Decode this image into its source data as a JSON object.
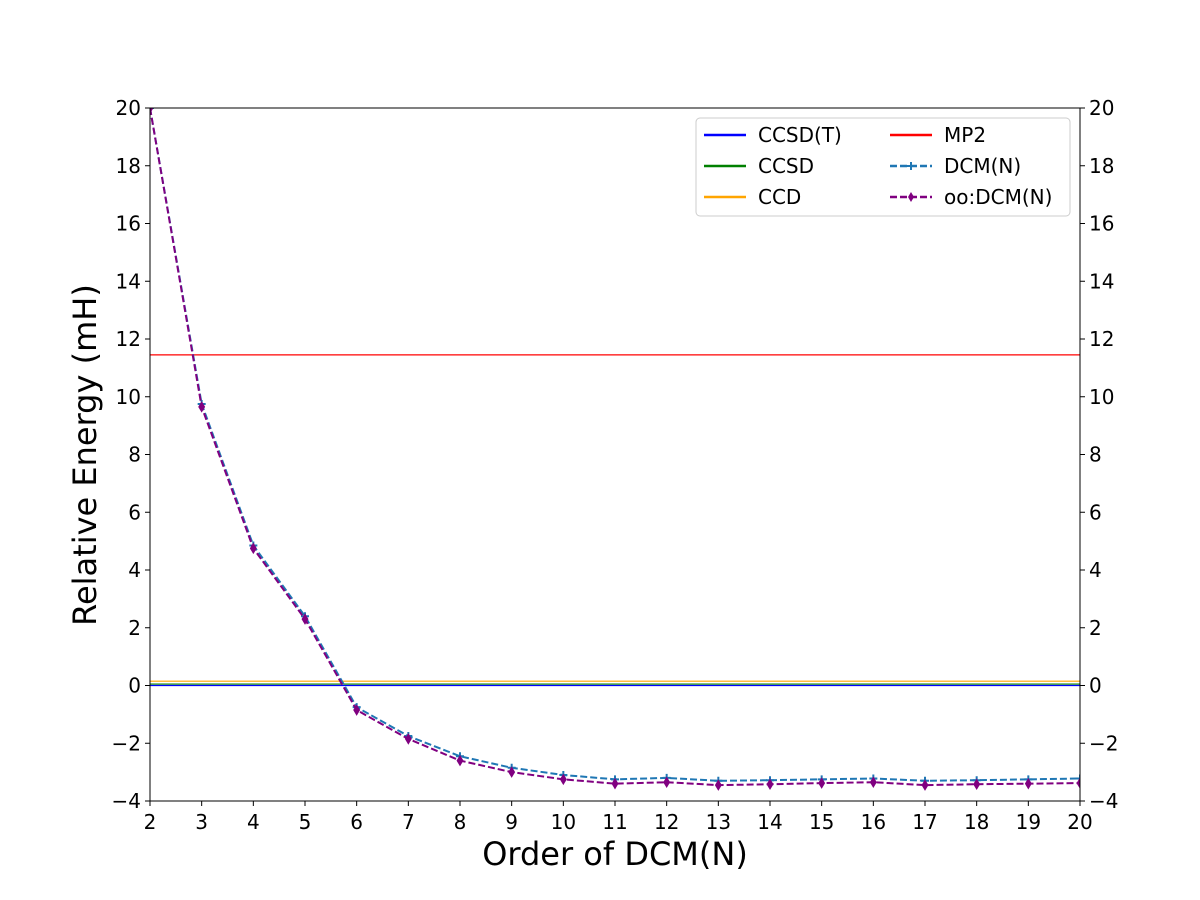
{
  "chart_data": {
    "type": "line",
    "title": "",
    "xlabel": "Order of DCM(N)",
    "ylabel": "Relative Energy (mH)",
    "xlim": [
      2,
      20
    ],
    "ylim": [
      -4,
      20
    ],
    "x_ticks": [
      2,
      3,
      4,
      5,
      6,
      7,
      8,
      9,
      10,
      11,
      12,
      13,
      14,
      15,
      16,
      17,
      18,
      19,
      20
    ],
    "y_ticks": [
      -4,
      -2,
      0,
      2,
      4,
      6,
      8,
      10,
      12,
      14,
      16,
      18,
      20
    ],
    "y_tick_labels": [
      "−4",
      "−2",
      "0",
      "2",
      "4",
      "6",
      "8",
      "10",
      "12",
      "14",
      "16",
      "18",
      "20"
    ],
    "x_tick_labels": [
      "2",
      "3",
      "4",
      "5",
      "6",
      "7",
      "8",
      "9",
      "10",
      "11",
      "12",
      "13",
      "14",
      "15",
      "16",
      "17",
      "18",
      "19",
      "20"
    ],
    "secondary_y_axis": true,
    "grid": false,
    "legend_position": "top-right",
    "legend_columns": 2,
    "reference_lines": [
      {
        "name": "CCSD(T)",
        "y": 0.0,
        "color": "#0000ff"
      },
      {
        "name": "CCSD",
        "y": 0.05,
        "color": "#008000"
      },
      {
        "name": "CCD",
        "y": 0.15,
        "color": "#ffa500"
      },
      {
        "name": "MP2",
        "y": 11.45,
        "color": "#ff0000"
      }
    ],
    "series": [
      {
        "name": "DCM(N)",
        "color": "#1f77b4",
        "linestyle": "dashed",
        "marker": "plus",
        "x": [
          2,
          3,
          4,
          5,
          6,
          7,
          8,
          9,
          10,
          11,
          12,
          13,
          14,
          15,
          16,
          17,
          18,
          19,
          20
        ],
        "values": [
          20.0,
          9.75,
          4.85,
          2.4,
          -0.75,
          -1.75,
          -2.45,
          -2.85,
          -3.1,
          -3.25,
          -3.2,
          -3.3,
          -3.28,
          -3.25,
          -3.22,
          -3.3,
          -3.28,
          -3.25,
          -3.22
        ]
      },
      {
        "name": "oo:DCM(N)",
        "color": "#800080",
        "linestyle": "dashed",
        "marker": "diamond",
        "x": [
          2,
          3,
          4,
          5,
          6,
          7,
          8,
          9,
          10,
          11,
          12,
          13,
          14,
          15,
          16,
          17,
          18,
          19,
          20
        ],
        "values": [
          20.0,
          9.65,
          4.75,
          2.3,
          -0.85,
          -1.85,
          -2.6,
          -3.0,
          -3.25,
          -3.4,
          -3.35,
          -3.45,
          -3.42,
          -3.38,
          -3.35,
          -3.45,
          -3.42,
          -3.4,
          -3.38
        ]
      }
    ]
  }
}
